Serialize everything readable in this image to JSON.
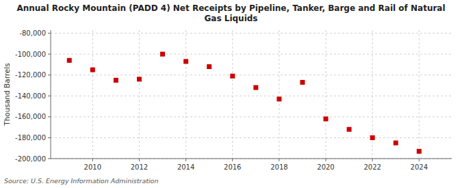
{
  "chart_data": {
    "type": "scatter",
    "title": "Annual Rocky Mountain (PADD 4) Net Receipts by Pipeline, Tanker, Barge and Rail of Natural\nGas Liquids",
    "ylabel": "Thousand Barrels",
    "source": "Source: U.S. Energy Information Administration",
    "x": [
      2009,
      2010,
      2011,
      2012,
      2013,
      2014,
      2015,
      2016,
      2017,
      2018,
      2019,
      2020,
      2021,
      2022,
      2023,
      2024
    ],
    "values": [
      -106000,
      -115000,
      -125000,
      -124000,
      -100000,
      -107000,
      -112000,
      -121000,
      -132000,
      -143000,
      -127000,
      -162000,
      -172000,
      -180000,
      -185000,
      -193000
    ],
    "color": "#cc0000",
    "marker": "square",
    "xlim": [
      2008.2,
      2025.4
    ],
    "xticks": [
      2010,
      2012,
      2014,
      2016,
      2018,
      2020,
      2022,
      2024
    ],
    "ylim": [
      -200000,
      -77000
    ],
    "yticks": [
      {
        "value": -200000,
        "label": "-200,000"
      },
      {
        "value": -180000,
        "label": "-180,000"
      },
      {
        "value": -160000,
        "label": "-160,000"
      },
      {
        "value": -140000,
        "label": "-140,000"
      },
      {
        "value": -120000,
        "label": "-120,000"
      },
      {
        "value": -100000,
        "label": "-100,000"
      },
      {
        "value": -80000,
        "label": "-80,000"
      }
    ],
    "grid": true
  }
}
